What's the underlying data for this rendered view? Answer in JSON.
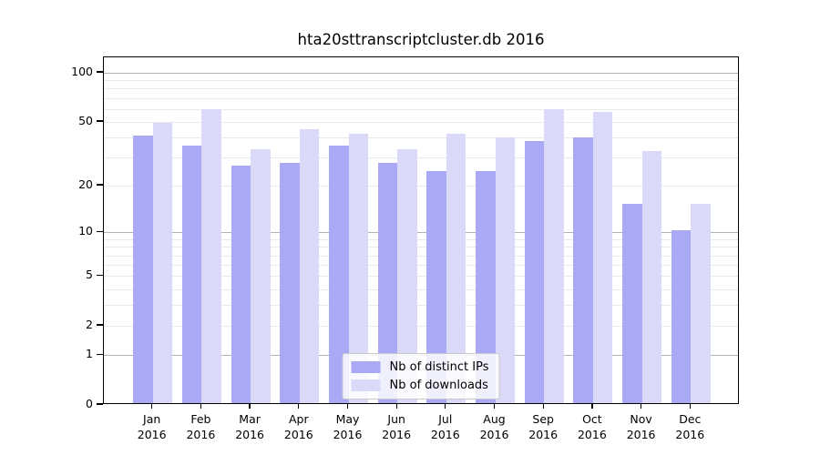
{
  "title": "hta20sttranscriptcluster.db 2016",
  "chart_data": {
    "type": "bar",
    "title": "hta20sttranscriptcluster.db 2016",
    "categories": [
      "Jan",
      "Feb",
      "Mar",
      "Apr",
      "May",
      "Jun",
      "Jul",
      "Aug",
      "Sep",
      "Oct",
      "Nov",
      "Dec"
    ],
    "x_tick_second_line": "2016",
    "series": [
      {
        "name": "Nb of distinct IPs",
        "color": "#a9a9f5",
        "values": [
          40,
          35,
          26,
          27,
          35,
          27,
          24,
          24,
          37,
          39,
          15,
          10
        ]
      },
      {
        "name": "Nb of downloads",
        "color": "#dadaf8",
        "values": [
          48,
          58,
          33,
          44,
          41,
          33,
          41,
          39,
          58,
          56,
          32,
          15
        ]
      }
    ],
    "y_axis": {
      "scale": "log10(value+1)",
      "tick_labels": [
        "100",
        "50",
        "20",
        "10",
        "5",
        "2",
        "1",
        "0"
      ],
      "tick_values": [
        100,
        50,
        20,
        10,
        5,
        2,
        1,
        0
      ],
      "major_gridlines": [
        1,
        10,
        100
      ],
      "minor_gridlines": [
        2,
        3,
        4,
        5,
        6,
        7,
        8,
        9,
        20,
        30,
        40,
        50,
        60,
        70,
        80,
        90
      ],
      "ylim": [
        0,
        124
      ]
    },
    "legend": {
      "location": "lower center",
      "entries": [
        "Nb of distinct IPs",
        "Nb of downloads"
      ]
    },
    "grid": true
  },
  "colors": {
    "ip_bar": "#a9a9f5",
    "download_bar": "#dadaf8",
    "major_grid": "#b3b3b3",
    "minor_grid": "#e9e9e9",
    "spine": "#000000",
    "legend_border": "#c9c9c9"
  }
}
